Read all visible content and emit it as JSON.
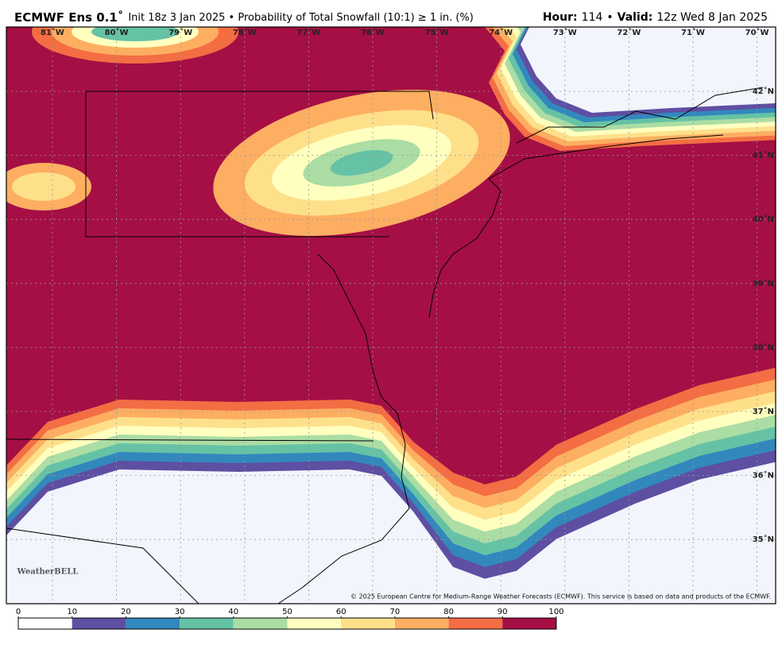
{
  "header": {
    "title": "ECMWF Ens 0.1˚",
    "subtitle": "Init 18z 3 Jan 2025 • Probability of Total Snowfall (10:1) ≥ 1 in. (%)",
    "hour_label": "Hour:",
    "hour": "114",
    "separator": "•",
    "valid_label": "Valid:",
    "valid": "12z Wed 8 Jan 2025"
  },
  "map": {
    "lon_labels": [
      "81˚W",
      "80˚W",
      "79˚W",
      "78˚W",
      "77˚W",
      "76˚W",
      "75˚W",
      "74˚W",
      "73˚W",
      "72˚W",
      "71˚W",
      "70˚W"
    ],
    "lat_labels": [
      "42˚N",
      "41˚N",
      "40˚N",
      "39˚N",
      "38˚N",
      "37˚N",
      "36˚N",
      "35˚N"
    ],
    "logo": "WeatherBELL",
    "credit": "© 2025 European Centre for Medium-Range Weather Forecasts (ECMWF). This service is based on data and products of the ECMWF."
  },
  "colorbar": {
    "ticks": [
      0,
      10,
      20,
      30,
      40,
      50,
      60,
      70,
      80,
      90,
      100
    ],
    "colors": [
      "#ffffff",
      "#5e4fa2",
      "#3288bd",
      "#66c2a5",
      "#abdda4",
      "#ffffbf",
      "#fee08b",
      "#fdae61",
      "#f46d43",
      "#a50f45"
    ]
  }
}
